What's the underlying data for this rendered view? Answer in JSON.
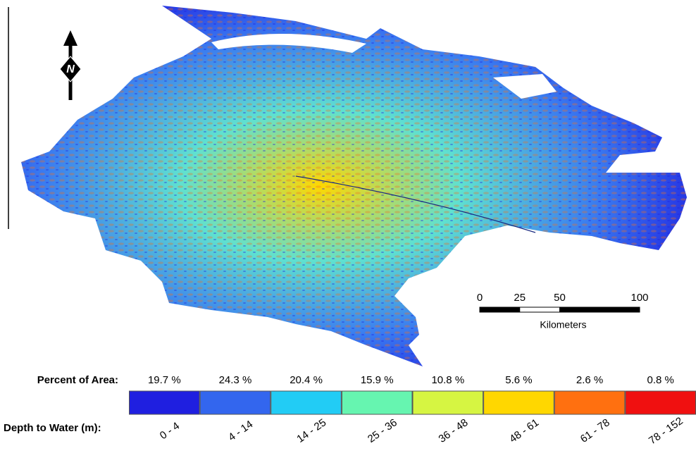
{
  "north": "N",
  "scale_bar": {
    "ticks": [
      0,
      25,
      50,
      100
    ],
    "unit": "Kilometers"
  },
  "legend": {
    "percent_label": "Percent of Area:",
    "depth_label": "Depth to Water (m):",
    "classes": [
      {
        "percent": "19.7 %",
        "depth": "0 - 4",
        "color": "#1f1fe0"
      },
      {
        "percent": "24.3 %",
        "depth": "4 - 14",
        "color": "#3366ee"
      },
      {
        "percent": "20.4 %",
        "depth": "14 - 25",
        "color": "#22ccf5"
      },
      {
        "percent": "15.9 %",
        "depth": "25 - 36",
        "color": "#66f5b0"
      },
      {
        "percent": "10.8 %",
        "depth": "36 - 48",
        "color": "#d6f542"
      },
      {
        "percent": "5.6 %",
        "depth": "48 - 61",
        "color": "#ffd700"
      },
      {
        "percent": "2.6 %",
        "depth": "61 - 78",
        "color": "#ff7010"
      },
      {
        "percent": "0.8 %",
        "depth": "78 - 152",
        "color": "#f01010"
      }
    ]
  }
}
